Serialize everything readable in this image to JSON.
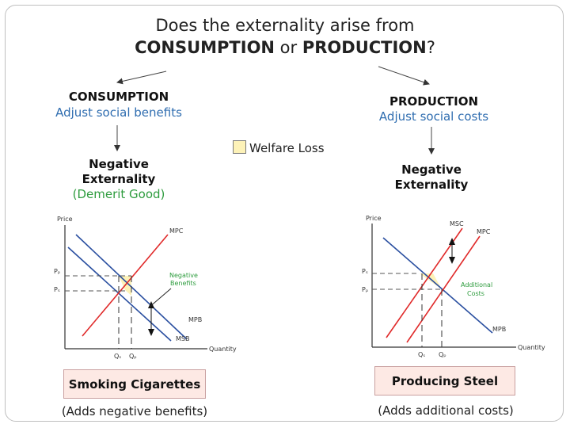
{
  "title_line1": "Does the externality arise from",
  "title_line2": {
    "a": "CONSUMPTION",
    "b": " or ",
    "c": "PRODUCTION",
    "d": "?"
  },
  "consumption": {
    "heading": "CONSUMPTION",
    "subheading": "Adjust social benefits",
    "negative": [
      "Negative",
      "Externality"
    ],
    "demerit": "(Demerit Good)",
    "chart": {
      "y_axis": "Price",
      "x_axis": "Quantity",
      "labels": {
        "mpc": "MPC",
        "mpb": "MPB",
        "msb": "MSB",
        "pp": "Pₚ",
        "ps": "Pₛ",
        "qs": "Qₛ",
        "qp": "Qₚ"
      },
      "annotation": [
        "Negative",
        "Benefits"
      ]
    },
    "example": "Smoking Cigarettes",
    "note": "(Adds negative benefits)"
  },
  "production": {
    "heading": "PRODUCTION",
    "subheading": "Adjust social costs",
    "negative": [
      "Negative",
      "Externality"
    ],
    "chart": {
      "y_axis": "Price",
      "x_axis": "Quantity",
      "labels": {
        "msc": "MSC",
        "mpc": "MPC",
        "mpb": "MPB",
        "ps": "Pₛ",
        "pp": "Pₚ",
        "qs": "Qₛ",
        "qp": "Qₚ"
      },
      "annotation": [
        "Additional",
        "Costs"
      ]
    },
    "example": "Producing Steel",
    "note": "(Adds additional costs)"
  },
  "legend": "Welfare Loss",
  "colors": {
    "supply": "#e02a2a",
    "demand": "#2a4fa0",
    "welfare": "#fdf2b8",
    "annotation": "#2e9c3e",
    "subheading": "#2f6db0"
  }
}
